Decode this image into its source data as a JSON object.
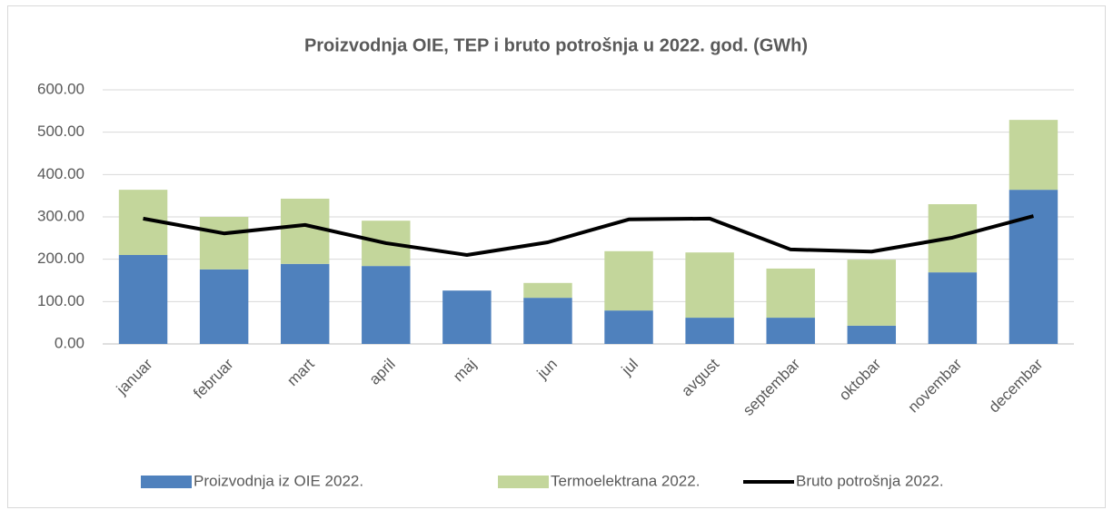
{
  "chart_data": {
    "type": "stacked_bar_line",
    "title": "Proizvodnja OIE, TEP i bruto potrošnja u 2022. god.  (GWh)",
    "categories": [
      "januar",
      "februar",
      "mart",
      "april",
      "maj",
      "jun",
      "jul",
      "avgust",
      "septembar",
      "oktobar",
      "novembar",
      "decembar"
    ],
    "series": [
      {
        "name": "Proizvodnja iz OIE 2022.",
        "color": "#4f81bd",
        "kind": "bar",
        "values": [
          210,
          176,
          189,
          184,
          126,
          109,
          79,
          62,
          62,
          43,
          169,
          364
        ]
      },
      {
        "name": "Termoelektrana 2022.",
        "color": "#c3d69b",
        "kind": "bar",
        "values": [
          154,
          124,
          154,
          107,
          0,
          35,
          140,
          154,
          116,
          156,
          161,
          165
        ]
      },
      {
        "name": "Bruto potrošnja 2022.",
        "color": "#000000",
        "kind": "line",
        "values": [
          296,
          261,
          281,
          238,
          210,
          240,
          294,
          296,
          223,
          218,
          251,
          302
        ]
      }
    ],
    "ylim": [
      0,
      600
    ],
    "yticks": [
      {
        "value": 0,
        "label": "0.00"
      },
      {
        "value": 100,
        "label": "100.00"
      },
      {
        "value": 200,
        "label": "200.00"
      },
      {
        "value": 300,
        "label": "300.00"
      },
      {
        "value": 400,
        "label": "400.00"
      },
      {
        "value": 500,
        "label": "500.00"
      },
      {
        "value": 600,
        "label": "600.00"
      }
    ],
    "grid": true,
    "legend": "bottom"
  }
}
